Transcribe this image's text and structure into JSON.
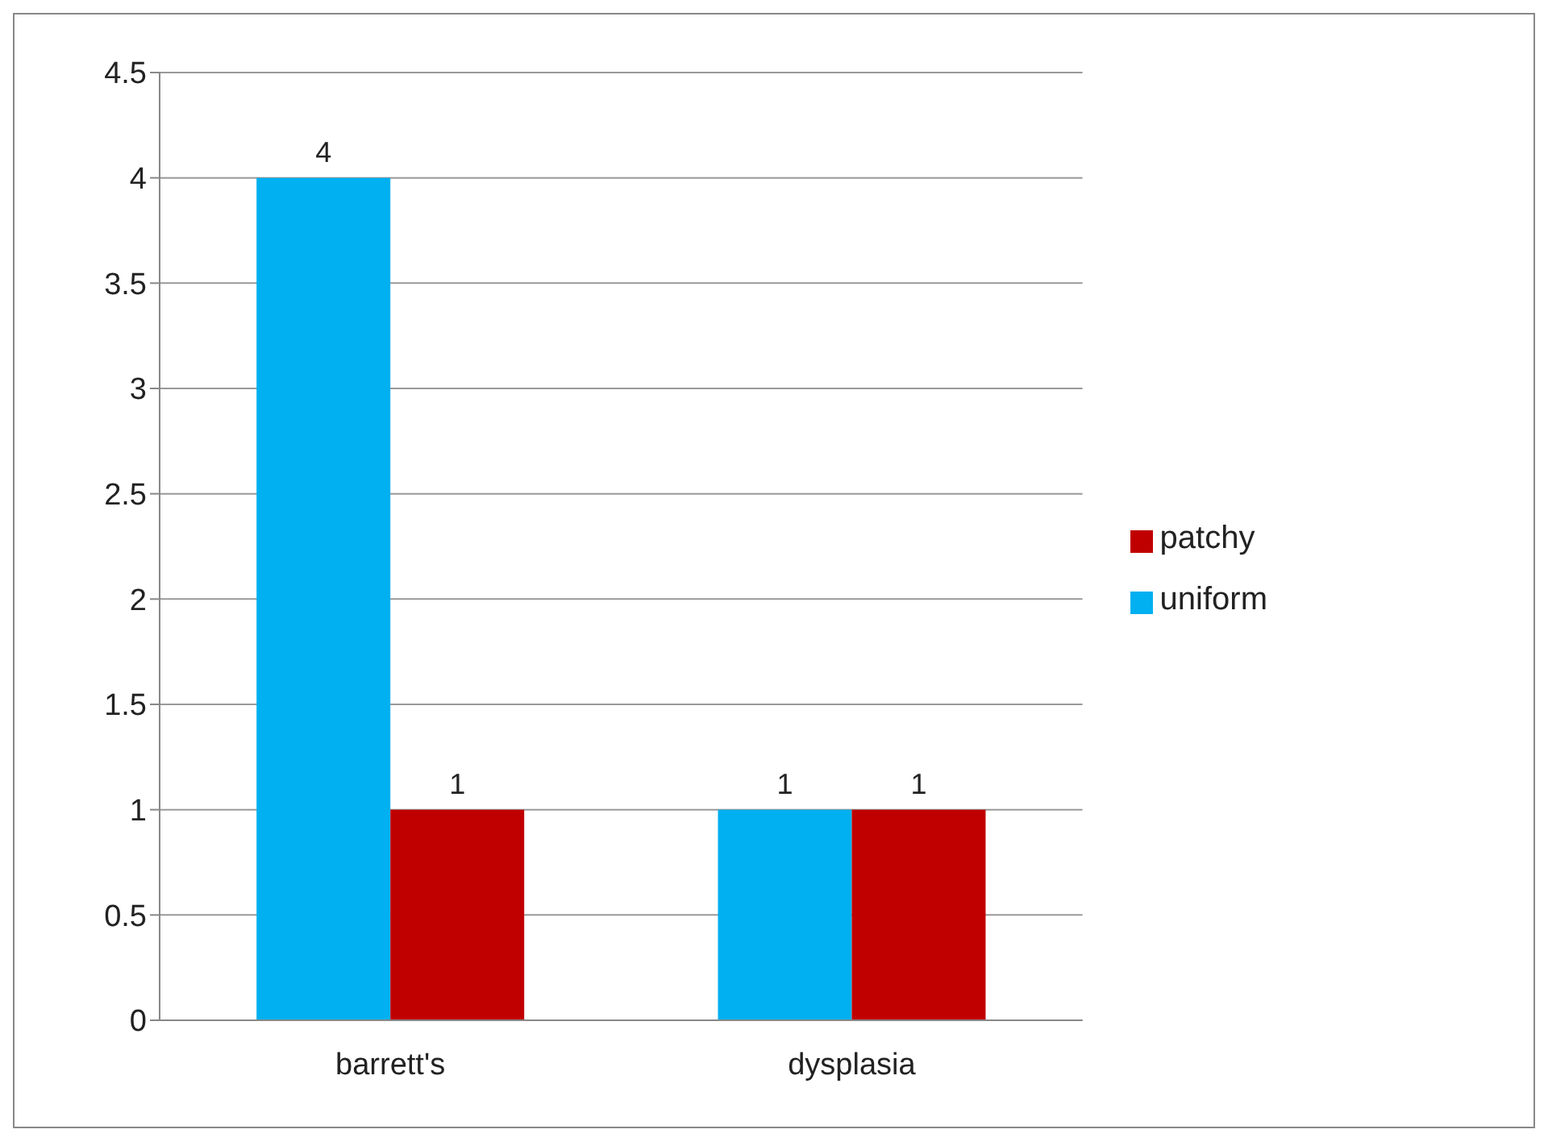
{
  "chart_data": {
    "type": "bar",
    "categories": [
      "barrett's",
      "dysplasia"
    ],
    "series": [
      {
        "name": "uniform",
        "color": "#00b0f0",
        "values": [
          4,
          1
        ]
      },
      {
        "name": "patchy",
        "color": "#c00000",
        "values": [
          1,
          1
        ]
      }
    ],
    "ylim": [
      0,
      4.5
    ],
    "yticks": [
      0,
      0.5,
      1,
      1.5,
      2,
      2.5,
      3,
      3.5,
      4,
      4.5
    ],
    "grid": "y",
    "legend": "right",
    "data_labels": true
  }
}
